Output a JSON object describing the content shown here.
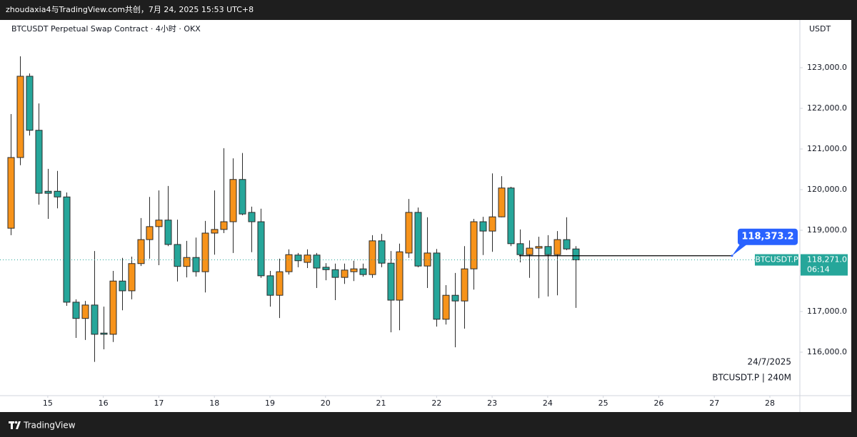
{
  "header": {
    "text": "zhoudaxia4与TradingView.com共创，7月 24, 2025 15:53 UTC+8"
  },
  "footer": {
    "brand": "TradingView"
  },
  "chart_data": {
    "type": "candlestick",
    "title": "BTCUSDT Perpetual Swap Contract · 4小时 · OKX",
    "y_unit": "USDT",
    "annotations": [
      "24/7/2025",
      "BTCUSDT.P | 240M"
    ],
    "up_color": "#f7931a",
    "down_color": "#26a69a",
    "border_color": "#2a2a2a",
    "grid": false,
    "xlim": [
      14.14,
      28.54
    ],
    "xticks": [
      15,
      16,
      17,
      18,
      19,
      20,
      21,
      22,
      23,
      24,
      25,
      26,
      27,
      28
    ],
    "ylim": [
      114930,
      124175
    ],
    "yticks": [
      {
        "value": 116000,
        "label": "116,000.0"
      },
      {
        "value": 117000,
        "label": "117,000.0"
      },
      {
        "value": 118000,
        "label": "118,000.0"
      },
      {
        "value": 119000,
        "label": "119,000.0"
      },
      {
        "value": 120000,
        "label": "120,000.0"
      },
      {
        "value": 121000,
        "label": "121,000.0"
      },
      {
        "value": 122000,
        "label": "122,000.0"
      },
      {
        "value": 123000,
        "label": "123,000.0"
      }
    ],
    "x": [
      14.333,
      14.5,
      14.667,
      14.833,
      15,
      15.167,
      15.333,
      15.5,
      15.667,
      15.833,
      16,
      16.167,
      16.333,
      16.5,
      16.667,
      16.833,
      17,
      17.167,
      17.333,
      17.5,
      17.667,
      17.833,
      18,
      18.167,
      18.333,
      18.5,
      18.667,
      18.833,
      19,
      19.167,
      19.333,
      19.5,
      19.667,
      19.833,
      20,
      20.167,
      20.333,
      20.5,
      20.667,
      20.833,
      21,
      21.167,
      21.333,
      21.5,
      21.667,
      21.833,
      22,
      22.167,
      22.333,
      22.5,
      22.667,
      22.833,
      23,
      23.167,
      23.333,
      23.5,
      23.667,
      23.833,
      24,
      24.167,
      24.333,
      24.5
    ],
    "open": [
      119050,
      120790,
      122790,
      121460,
      119960,
      119960,
      119820,
      117230,
      116830,
      117160,
      116470,
      116440,
      117750,
      117510,
      118180,
      118770,
      119090,
      119250,
      118650,
      118110,
      118330,
      117980,
      118930,
      119020,
      119210,
      120250,
      119440,
      119210,
      117880,
      117400,
      117980,
      118390,
      118210,
      118390,
      118090,
      118030,
      117840,
      117980,
      118050,
      117910,
      118740,
      118190,
      117280,
      118440,
      119440,
      118120,
      118440,
      116810,
      117400,
      117260,
      118050,
      119210,
      118980,
      119330,
      120040,
      118670,
      118400,
      118560,
      118600,
      118400,
      118770,
      118540
    ],
    "high": [
      121860,
      123280,
      122860,
      122120,
      120510,
      120460,
      119930,
      117300,
      117260,
      118490,
      117120,
      118000,
      118320,
      118350,
      119300,
      119820,
      119980,
      120090,
      119260,
      118740,
      118820,
      119230,
      119980,
      121020,
      120770,
      120900,
      119580,
      119530,
      118000,
      118300,
      118530,
      118440,
      118530,
      118440,
      118190,
      118180,
      118180,
      118250,
      118180,
      118880,
      118910,
      118490,
      118670,
      119770,
      119560,
      119320,
      118540,
      117650,
      117950,
      118610,
      119280,
      119330,
      120400,
      120330,
      120070,
      119020,
      118750,
      118840,
      118880,
      118980,
      119320,
      118610
    ],
    "low": [
      118880,
      120600,
      121330,
      119630,
      119280,
      119540,
      117140,
      116350,
      116300,
      115760,
      116070,
      116250,
      117030,
      117300,
      118120,
      118300,
      118140,
      118610,
      117740,
      117840,
      117860,
      117470,
      118400,
      118930,
      118440,
      119370,
      118460,
      117830,
      117120,
      116840,
      117910,
      118090,
      118070,
      117580,
      117770,
      117280,
      117680,
      117750,
      117860,
      117830,
      118090,
      116490,
      116540,
      118320,
      118090,
      117580,
      116630,
      116680,
      116120,
      116580,
      117540,
      118390,
      118470,
      119320,
      118610,
      118210,
      117830,
      117330,
      117370,
      117400,
      118510,
      117090
    ],
    "close": [
      120790,
      122790,
      121460,
      119910,
      119910,
      119820,
      117230,
      116830,
      117160,
      116440,
      116440,
      117750,
      117510,
      118180,
      118770,
      119090,
      119250,
      118650,
      118110,
      118330,
      117980,
      118930,
      119020,
      119210,
      120250,
      119400,
      119210,
      117880,
      117400,
      117980,
      118400,
      118250,
      118390,
      118070,
      118030,
      117840,
      118020,
      118050,
      117910,
      118740,
      118190,
      117280,
      118470,
      119440,
      118120,
      118440,
      116810,
      117400,
      117260,
      118050,
      119210,
      118980,
      119330,
      120040,
      118670,
      118400,
      118560,
      118600,
      118400,
      118770,
      118540,
      118271
    ],
    "last_price": {
      "name": "BTCUSDT.P",
      "value": 118271,
      "label": "118,271.0",
      "countdown": "06:14",
      "color": "#26a69a"
    },
    "alert": {
      "value": 118373.2,
      "label": "118,373.2",
      "color": "#2962ff"
    }
  }
}
